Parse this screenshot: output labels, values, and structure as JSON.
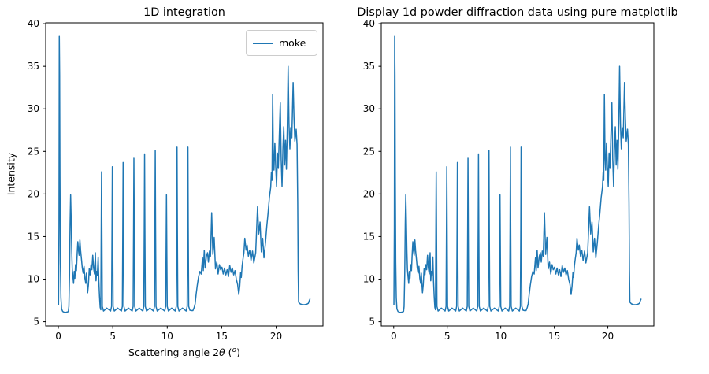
{
  "figure": {
    "background": "#ffffff",
    "line_color": "#1f77b4",
    "spine_color": "#000000",
    "tick_label_color": "#000000"
  },
  "chart_data": {
    "type": "line",
    "grid": false,
    "series": [
      {
        "name": "moke",
        "color": "#1f77b4",
        "points": [
          [
            0.02,
            7.0
          ],
          [
            0.06,
            16.0
          ],
          [
            0.09,
            38.5
          ],
          [
            0.12,
            34.0
          ],
          [
            0.15,
            22.0
          ],
          [
            0.19,
            12.0
          ],
          [
            0.24,
            7.8
          ],
          [
            0.3,
            6.5
          ],
          [
            0.4,
            6.2
          ],
          [
            0.55,
            6.1
          ],
          [
            0.7,
            6.1
          ],
          [
            0.85,
            6.15
          ],
          [
            0.92,
            6.2
          ],
          [
            0.97,
            6.8
          ],
          [
            1.03,
            10.5
          ],
          [
            1.08,
            16.5
          ],
          [
            1.13,
            19.9
          ],
          [
            1.18,
            17.0
          ],
          [
            1.23,
            13.5
          ],
          [
            1.28,
            11.2
          ],
          [
            1.34,
            10.3
          ],
          [
            1.4,
            9.5
          ],
          [
            1.46,
            10.9
          ],
          [
            1.52,
            10.1
          ],
          [
            1.58,
            11.7
          ],
          [
            1.66,
            11.0
          ],
          [
            1.73,
            13.0
          ],
          [
            1.79,
            14.4
          ],
          [
            1.85,
            13.4
          ],
          [
            1.91,
            12.8
          ],
          [
            1.98,
            14.6
          ],
          [
            2.05,
            13.3
          ],
          [
            2.12,
            12.4
          ],
          [
            2.2,
            11.3
          ],
          [
            2.28,
            10.7
          ],
          [
            2.36,
            11.5
          ],
          [
            2.44,
            10.1
          ],
          [
            2.52,
            9.5
          ],
          [
            2.58,
            10.7
          ],
          [
            2.64,
            9.4
          ],
          [
            2.69,
            8.4
          ],
          [
            2.76,
            9.3
          ],
          [
            2.84,
            11.2
          ],
          [
            2.92,
            10.5
          ],
          [
            3.0,
            11.7
          ],
          [
            3.08,
            11.1
          ],
          [
            3.16,
            12.8
          ],
          [
            3.24,
            11.3
          ],
          [
            3.32,
            10.6
          ],
          [
            3.4,
            13.1
          ],
          [
            3.46,
            9.8
          ],
          [
            3.52,
            10.9
          ],
          [
            3.58,
            10.4
          ],
          [
            3.66,
            12.6
          ],
          [
            3.72,
            9.8
          ],
          [
            3.78,
            8.0
          ],
          [
            3.84,
            6.7
          ],
          [
            3.9,
            6.4
          ],
          [
            3.94,
            16.0
          ],
          [
            3.97,
            22.6
          ],
          [
            4.0,
            16.0
          ],
          [
            4.04,
            6.8
          ],
          [
            4.15,
            6.25
          ],
          [
            4.45,
            6.6
          ],
          [
            4.8,
            6.25
          ],
          [
            4.89,
            6.8
          ],
          [
            4.93,
            16.0
          ],
          [
            4.96,
            23.2
          ],
          [
            4.99,
            16.0
          ],
          [
            5.03,
            6.8
          ],
          [
            5.14,
            6.25
          ],
          [
            5.45,
            6.6
          ],
          [
            5.79,
            6.25
          ],
          [
            5.88,
            6.8
          ],
          [
            5.92,
            16.0
          ],
          [
            5.95,
            23.7
          ],
          [
            5.98,
            16.0
          ],
          [
            6.02,
            6.8
          ],
          [
            6.13,
            6.25
          ],
          [
            6.44,
            6.6
          ],
          [
            6.78,
            6.25
          ],
          [
            6.87,
            6.8
          ],
          [
            6.91,
            16.0
          ],
          [
            6.94,
            24.2
          ],
          [
            6.97,
            16.0
          ],
          [
            7.01,
            6.8
          ],
          [
            7.12,
            6.25
          ],
          [
            7.43,
            6.6
          ],
          [
            7.76,
            6.25
          ],
          [
            7.85,
            6.8
          ],
          [
            7.89,
            16.0
          ],
          [
            7.92,
            24.7
          ],
          [
            7.95,
            16.0
          ],
          [
            7.99,
            6.8
          ],
          [
            8.1,
            6.25
          ],
          [
            8.41,
            6.6
          ],
          [
            8.74,
            6.25
          ],
          [
            8.83,
            6.8
          ],
          [
            8.87,
            16.0
          ],
          [
            8.9,
            25.1
          ],
          [
            8.93,
            16.0
          ],
          [
            8.97,
            6.8
          ],
          [
            9.08,
            6.25
          ],
          [
            9.41,
            6.6
          ],
          [
            9.77,
            6.25
          ],
          [
            9.86,
            6.8
          ],
          [
            9.9,
            14.0
          ],
          [
            9.93,
            19.9
          ],
          [
            9.96,
            14.0
          ],
          [
            10.0,
            6.8
          ],
          [
            10.11,
            6.25
          ],
          [
            10.41,
            6.6
          ],
          [
            10.74,
            6.25
          ],
          [
            10.83,
            6.8
          ],
          [
            10.87,
            16.0
          ],
          [
            10.9,
            25.5
          ],
          [
            10.93,
            16.0
          ],
          [
            10.97,
            6.8
          ],
          [
            11.08,
            6.25
          ],
          [
            11.4,
            6.6
          ],
          [
            11.74,
            6.25
          ],
          [
            11.83,
            6.8
          ],
          [
            11.87,
            16.0
          ],
          [
            11.9,
            25.5
          ],
          [
            11.93,
            16.0
          ],
          [
            11.97,
            6.8
          ],
          [
            12.08,
            6.35
          ],
          [
            12.22,
            6.3
          ],
          [
            12.36,
            6.3
          ],
          [
            12.48,
            6.7
          ],
          [
            12.56,
            7.1
          ],
          [
            12.66,
            8.3
          ],
          [
            12.76,
            9.3
          ],
          [
            12.88,
            10.3
          ],
          [
            13.0,
            10.9
          ],
          [
            13.12,
            10.6
          ],
          [
            13.24,
            12.5
          ],
          [
            13.31,
            11.0
          ],
          [
            13.4,
            13.4
          ],
          [
            13.48,
            11.3
          ],
          [
            13.6,
            12.7
          ],
          [
            13.7,
            13.1
          ],
          [
            13.78,
            12.0
          ],
          [
            13.88,
            13.3
          ],
          [
            13.97,
            12.7
          ],
          [
            14.08,
            17.8
          ],
          [
            14.19,
            12.9
          ],
          [
            14.31,
            14.9
          ],
          [
            14.43,
            11.2
          ],
          [
            14.55,
            12.0
          ],
          [
            14.67,
            10.6
          ],
          [
            14.79,
            11.7
          ],
          [
            14.9,
            11.1
          ],
          [
            15.02,
            11.4
          ],
          [
            15.14,
            10.6
          ],
          [
            15.26,
            11.3
          ],
          [
            15.38,
            10.5
          ],
          [
            15.5,
            11.1
          ],
          [
            15.62,
            10.3
          ],
          [
            15.74,
            11.6
          ],
          [
            15.86,
            10.8
          ],
          [
            15.98,
            11.3
          ],
          [
            16.1,
            10.5
          ],
          [
            16.22,
            11.0
          ],
          [
            16.34,
            10.0
          ],
          [
            16.46,
            9.4
          ],
          [
            16.57,
            8.2
          ],
          [
            16.66,
            9.2
          ],
          [
            16.74,
            10.8
          ],
          [
            16.8,
            10.2
          ],
          [
            16.88,
            11.6
          ],
          [
            16.96,
            12.4
          ],
          [
            17.04,
            13.1
          ],
          [
            17.12,
            14.8
          ],
          [
            17.24,
            13.4
          ],
          [
            17.33,
            14.0
          ],
          [
            17.45,
            12.7
          ],
          [
            17.57,
            13.4
          ],
          [
            17.69,
            12.2
          ],
          [
            17.83,
            13.3
          ],
          [
            17.95,
            11.9
          ],
          [
            18.12,
            13.1
          ],
          [
            18.29,
            18.5
          ],
          [
            18.4,
            15.3
          ],
          [
            18.52,
            16.7
          ],
          [
            18.64,
            13.2
          ],
          [
            18.76,
            14.8
          ],
          [
            18.88,
            12.5
          ],
          [
            19.02,
            14.3
          ],
          [
            19.14,
            16.2
          ],
          [
            19.26,
            17.8
          ],
          [
            19.38,
            19.6
          ],
          [
            19.5,
            20.8
          ],
          [
            19.56,
            22.5
          ],
          [
            19.62,
            21.6
          ],
          [
            19.68,
            31.7
          ],
          [
            19.74,
            24.3
          ],
          [
            19.8,
            22.8
          ],
          [
            19.88,
            26.0
          ],
          [
            19.96,
            23.2
          ],
          [
            20.04,
            20.9
          ],
          [
            20.12,
            24.8
          ],
          [
            20.2,
            23.0
          ],
          [
            20.28,
            26.5
          ],
          [
            20.38,
            30.7
          ],
          [
            20.46,
            24.1
          ],
          [
            20.54,
            20.9
          ],
          [
            20.62,
            25.2
          ],
          [
            20.7,
            27.9
          ],
          [
            20.78,
            23.4
          ],
          [
            20.86,
            26.3
          ],
          [
            20.94,
            22.9
          ],
          [
            21.02,
            27.5
          ],
          [
            21.1,
            35.0
          ],
          [
            21.18,
            28.2
          ],
          [
            21.26,
            25.3
          ],
          [
            21.34,
            27.8
          ],
          [
            21.44,
            26.6
          ],
          [
            21.56,
            33.1
          ],
          [
            21.64,
            28.9
          ],
          [
            21.72,
            26.2
          ],
          [
            21.84,
            27.6
          ],
          [
            21.92,
            25.8
          ],
          [
            21.98,
            19.0
          ],
          [
            22.02,
            11.0
          ],
          [
            22.06,
            7.3
          ],
          [
            22.2,
            7.1
          ],
          [
            22.4,
            7.0
          ],
          [
            22.6,
            7.0
          ],
          [
            22.8,
            7.05
          ],
          [
            22.95,
            7.15
          ],
          [
            23.05,
            7.5
          ],
          [
            23.12,
            7.7
          ]
        ]
      }
    ],
    "plots": [
      {
        "title": "1D integration",
        "xlabel": "Scattering angle 2θ (°)",
        "xlabel_parts": {
          "prefix": "Scattering angle 2",
          "theta": "θ",
          "mid": " (",
          "sup": "o",
          "suffix": ")"
        },
        "ylabel": "Intensity",
        "legend": [
          "moke"
        ],
        "legend_loc": "upper right",
        "xlim": [
          -1.16,
          24.3
        ],
        "ylim": [
          4.5,
          40.1
        ],
        "x_ticks": [
          0,
          5,
          10,
          15,
          20
        ],
        "y_ticks": [
          5,
          10,
          15,
          20,
          25,
          30,
          35,
          40
        ]
      },
      {
        "title": "Display 1d powder diffraction data using pure matplotlib",
        "xlabel": "",
        "ylabel": "",
        "legend": [],
        "xlim": [
          -1.16,
          24.3
        ],
        "ylim": [
          4.5,
          40.1
        ],
        "x_ticks": [
          0,
          5,
          10,
          15,
          20
        ],
        "y_ticks": [
          5,
          10,
          15,
          20,
          25,
          30,
          35,
          40
        ]
      }
    ]
  }
}
